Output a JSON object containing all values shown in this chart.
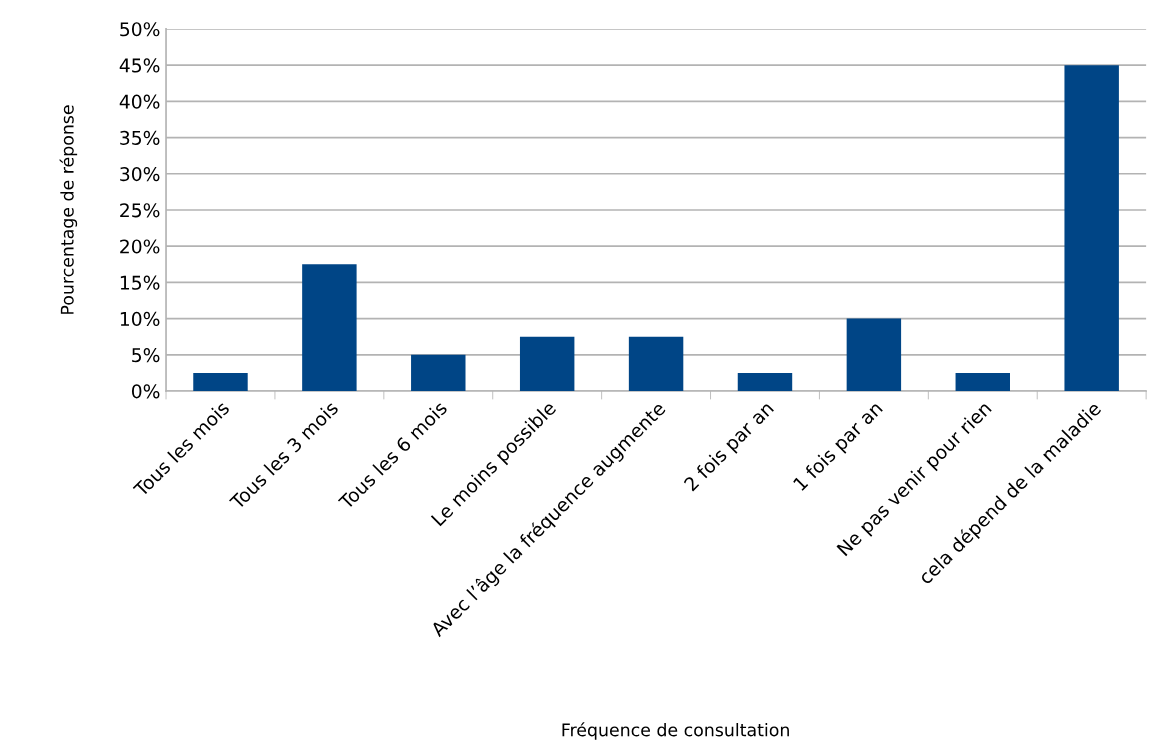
{
  "chart_data": {
    "type": "bar",
    "categories": [
      "Tous les mois",
      "Tous les 3 mois",
      "Tous les 6 mois",
      "Le moins possible",
      "Avec l’âge la fréquence augmente",
      "2 fois par an",
      "1 fois par an",
      "Ne pas venir pour rien",
      "cela dépend de la maladie"
    ],
    "values": [
      2.5,
      17.5,
      5,
      7.5,
      7.5,
      2.5,
      10,
      2.5,
      45
    ],
    "color": "#004586",
    "xlabel": "Fréquence de consultation",
    "ylabel": "Pourcentage de réponse",
    "ylim": [
      0,
      50
    ],
    "yticks": [
      {
        "value": 0,
        "label": "0%"
      },
      {
        "value": 5,
        "label": "5%"
      },
      {
        "value": 10,
        "label": "10%"
      },
      {
        "value": 15,
        "label": "15%"
      },
      {
        "value": 20,
        "label": "20%"
      },
      {
        "value": 25,
        "label": "25%"
      },
      {
        "value": 30,
        "label": "30%"
      },
      {
        "value": 35,
        "label": "35%"
      },
      {
        "value": 40,
        "label": "40%"
      },
      {
        "value": 45,
        "label": "45%"
      },
      {
        "value": 50,
        "label": "50%"
      }
    ],
    "grid": "y",
    "legend": false
  }
}
